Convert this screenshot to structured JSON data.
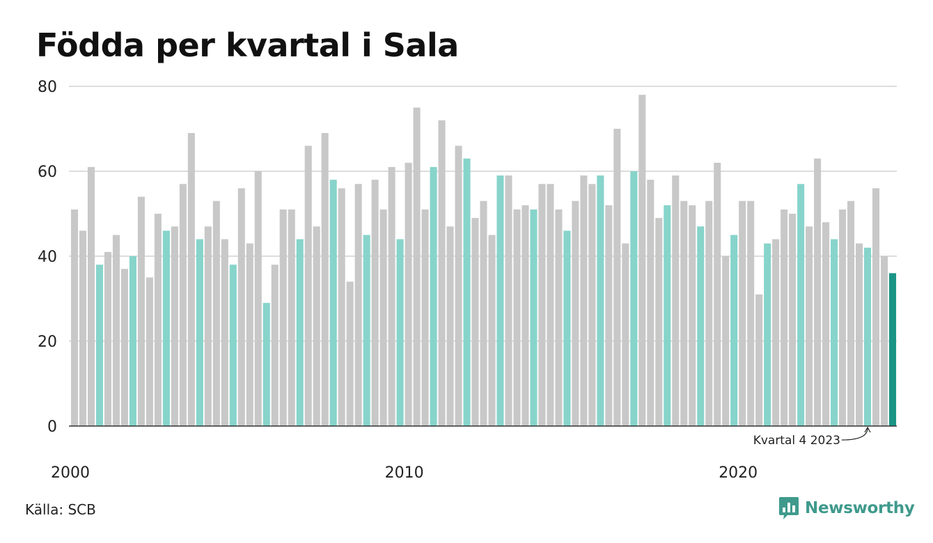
{
  "chart_data": {
    "type": "bar",
    "title": "Födda per kvartal i Sala",
    "xlabel": "",
    "ylabel": "",
    "ylim": [
      0,
      80
    ],
    "yticks": [
      0,
      20,
      40,
      60,
      80
    ],
    "xticks": [
      "2000",
      "2010",
      "2020"
    ],
    "grid": true,
    "first_quarter": "2000 Q1",
    "values": [
      51,
      46,
      61,
      38,
      41,
      45,
      37,
      40,
      54,
      35,
      50,
      46,
      47,
      57,
      69,
      44,
      47,
      53,
      44,
      38,
      56,
      43,
      60,
      29,
      38,
      51,
      51,
      44,
      66,
      47,
      69,
      58,
      56,
      34,
      57,
      45,
      58,
      51,
      61,
      44,
      62,
      75,
      51,
      61,
      72,
      47,
      66,
      63,
      49,
      53,
      45,
      59,
      59,
      51,
      52,
      51,
      57,
      57,
      51,
      46,
      53,
      59,
      57,
      59,
      52,
      70,
      43,
      60,
      78,
      58,
      49,
      52,
      59,
      53,
      52,
      47,
      53,
      62,
      40,
      45,
      53,
      53,
      31,
      43,
      44,
      51,
      50,
      57,
      47,
      63,
      48,
      44,
      51,
      53,
      43,
      42,
      56,
      40,
      36
    ],
    "highlight_quarter": 4,
    "annotation": {
      "label": "Kvartal 4 2023",
      "index": 95
    },
    "colors": {
      "default": "#c8c8c8",
      "quarter4": "#87d4cb",
      "latest": "#1a9585",
      "grid": "#dddddd",
      "axis": "#333333"
    }
  },
  "footer": {
    "source": "Källa: SCB",
    "logo_text": "Newsworthy",
    "logo_icon": "chart-bubble-icon"
  }
}
